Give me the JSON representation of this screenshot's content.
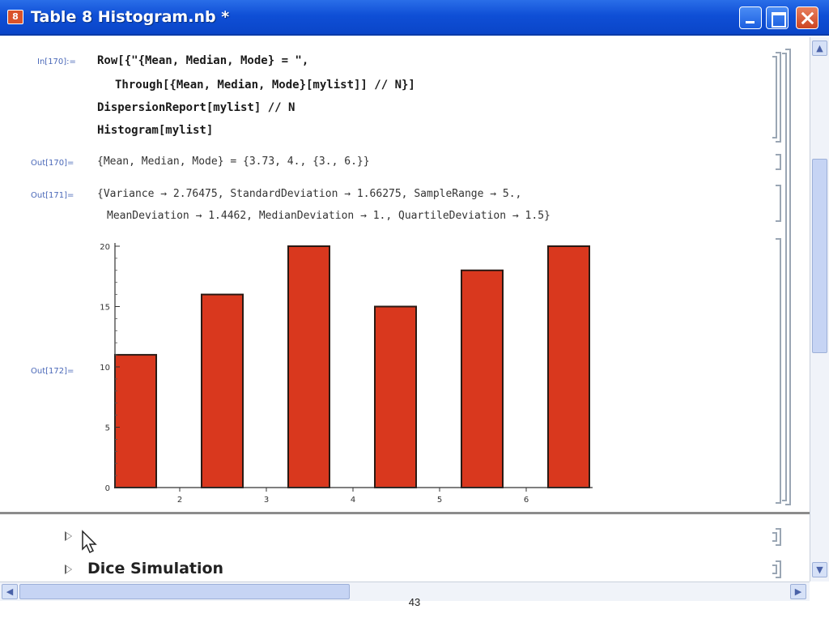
{
  "window": {
    "title": "Table 8 Histogram.nb *",
    "app_icon_label": "8",
    "controls": {
      "minimize": "minimize",
      "maximize": "maximize",
      "close": "close"
    }
  },
  "cells": {
    "input": {
      "label": "In[170]:=",
      "lines": [
        "Row[{\"{Mean, Median, Mode} = \",",
        "Through[{Mean, Median, Mode}[mylist]] // N}]",
        "DispersionReport[mylist] // N",
        "Histogram[mylist]"
      ]
    },
    "output_170": {
      "label": "Out[170]=",
      "text": "{Mean, Median, Mode} = {3.73, 4., {3., 6.}}"
    },
    "output_171": {
      "label": "Out[171]=",
      "lines": [
        "{Variance → 2.76475, StandardDeviation → 1.66275, SampleRange → 5.,",
        "MeanDeviation → 1.4462, MedianDeviation → 1., QuartileDeviation → 1.5}"
      ]
    },
    "output_172": {
      "label": "Out[172]="
    }
  },
  "chart_data": {
    "type": "bar",
    "title": "",
    "xlabel": "",
    "ylabel": "",
    "categories": [
      "1",
      "2",
      "3",
      "4",
      "5",
      "6"
    ],
    "x_tick_labels": [
      "2",
      "3",
      "4",
      "5",
      "6"
    ],
    "values": [
      11,
      16,
      20,
      15,
      18,
      20
    ],
    "ylim": [
      0,
      20
    ],
    "y_ticks": [
      "0",
      "5",
      "10",
      "15",
      "20"
    ],
    "bar_color": "#d9381e",
    "grid": false,
    "legend": "none"
  },
  "sections": {
    "dice_simulation": "Dice Simulation"
  },
  "page_number": "43"
}
